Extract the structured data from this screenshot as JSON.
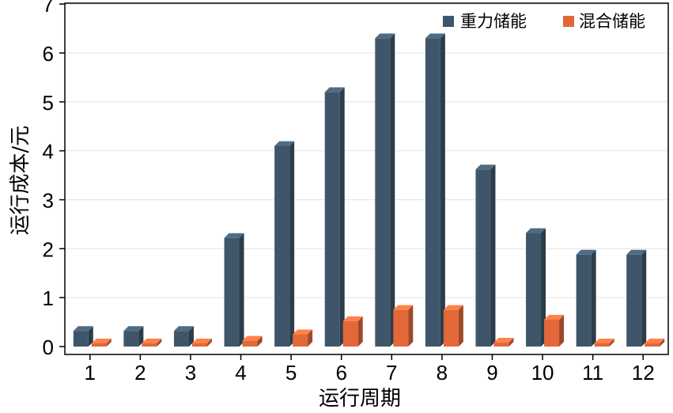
{
  "chart_data": {
    "type": "bar",
    "categories": [
      "1",
      "2",
      "3",
      "4",
      "5",
      "6",
      "7",
      "8",
      "9",
      "10",
      "11",
      "12"
    ],
    "series": [
      {
        "name": "重力储能",
        "color": "#3f566a",
        "values": [
          0.32,
          0.32,
          0.32,
          2.22,
          4.1,
          5.2,
          6.3,
          6.3,
          3.62,
          2.32,
          1.88,
          1.88
        ]
      },
      {
        "name": "混合储能",
        "color": "#e2683a",
        "values": [
          0.0,
          0.0,
          0.0,
          0.12,
          0.25,
          0.52,
          0.75,
          0.75,
          0.08,
          0.55,
          0.0,
          0.0
        ]
      }
    ],
    "xlabel": "运行周期",
    "ylabel": "运行成本/元",
    "ylim": [
      0,
      7
    ],
    "yticks": [
      "0",
      "1",
      "2",
      "3",
      "4",
      "5",
      "6",
      "7"
    ],
    "grid": true,
    "legend_position": "top-right"
  }
}
